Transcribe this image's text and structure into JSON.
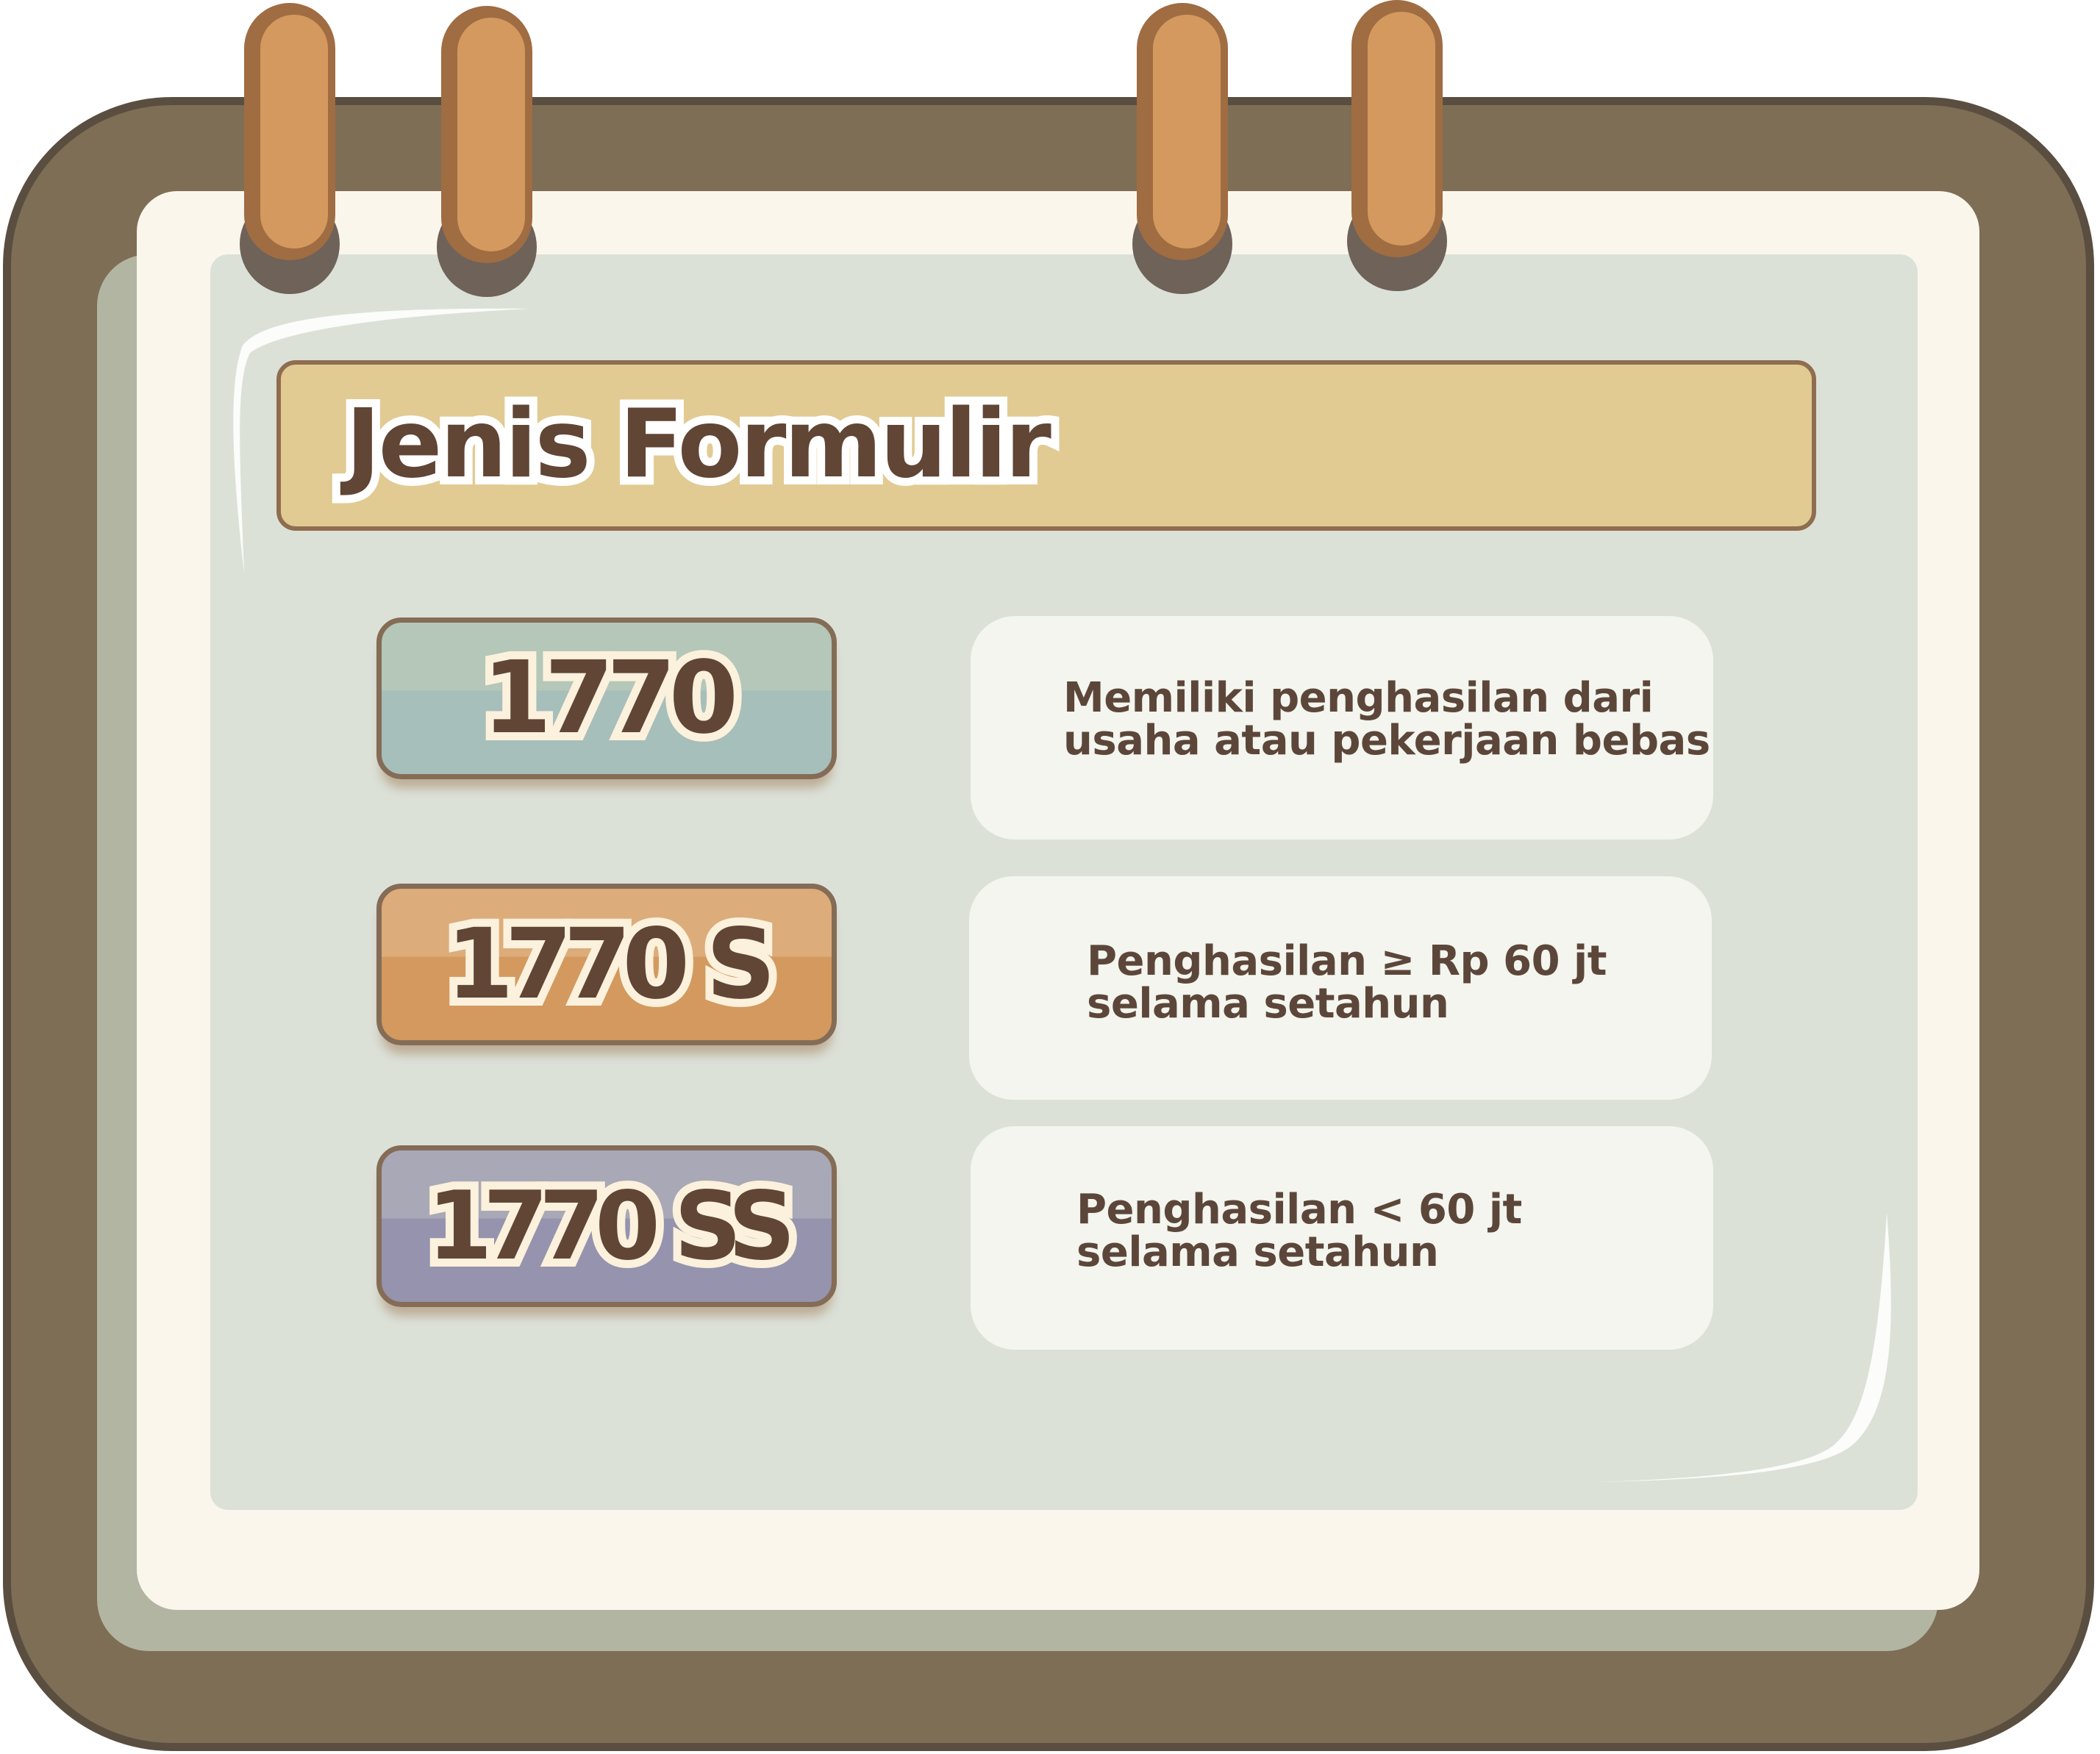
{
  "header": {
    "title": "Jenis Formulir"
  },
  "forms": [
    {
      "code": "1770",
      "desc_line1": "Memiliki penghasilan dari",
      "desc_line2": "usaha atau pekerjaan bebas"
    },
    {
      "code": "1770 S",
      "desc_line1": "Penghasilan ≥ Rp 60 jt",
      "desc_line2": "selama setahun"
    },
    {
      "code": "1770 SS",
      "desc_line1": "Penghasilan <  60 jt",
      "desc_line2": "selama setahun"
    }
  ],
  "colors": {
    "board": "#7e6e55",
    "paper": "#fbf6ec",
    "inner": "#dce1d8",
    "title_bar": "#e1cb93",
    "text": "#614535",
    "badge_1770": "#a7bfbb",
    "badge_1770s": "#d3995e",
    "badge_1770ss": "#9593ad"
  }
}
